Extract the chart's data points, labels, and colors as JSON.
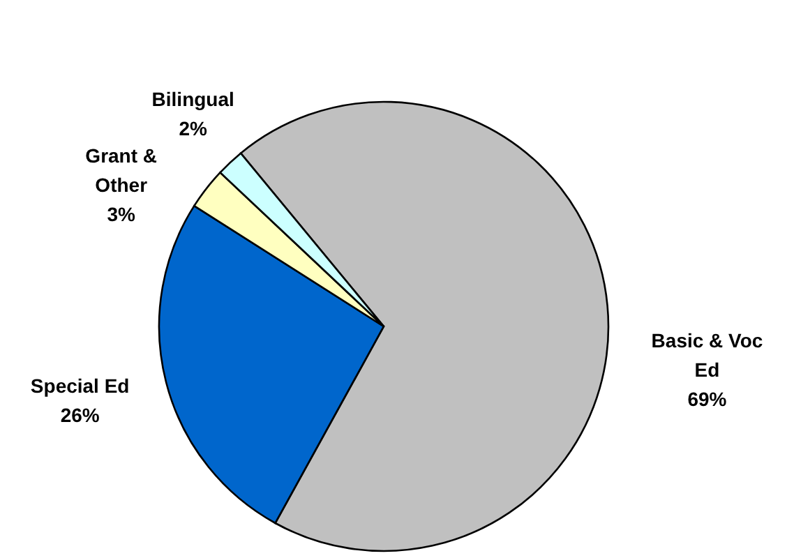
{
  "chart_data": {
    "type": "pie",
    "categories": [
      "Basic & Voc Ed",
      "Special Ed",
      "Grant & Other",
      "Bilingual"
    ],
    "values": [
      69,
      26,
      3,
      2
    ],
    "value_labels": [
      "69%",
      "26%",
      "3%",
      "2%"
    ],
    "colors": [
      "#c0c0c0",
      "#0066cc",
      "#ffffc0",
      "#ccffff"
    ]
  }
}
